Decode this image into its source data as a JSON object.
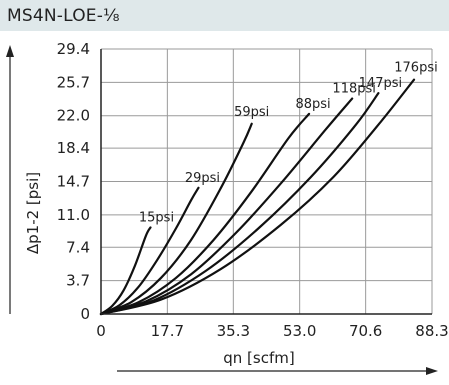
{
  "header": {
    "title": "MS4N-LOE-⅛"
  },
  "chart_data": {
    "type": "line",
    "title": "",
    "xlabel": "qn [scfm]",
    "ylabel": "Δp1-2 [psi]",
    "xlim": [
      0,
      88.3
    ],
    "ylim": [
      0,
      29.4
    ],
    "grid": true,
    "x_ticks": [
      "0",
      "17.7",
      "35.3",
      "53.0",
      "70.6",
      "88.3"
    ],
    "y_ticks": [
      "0",
      "3.7",
      "7.4",
      "11.0",
      "14.7",
      "18.4",
      "22.0",
      "25.7",
      "29.4"
    ],
    "series": [
      {
        "name": "15psi",
        "points": [
          [
            0,
            0
          ],
          [
            3,
            0.9
          ],
          [
            6,
            2.6
          ],
          [
            9,
            5.3
          ],
          [
            12,
            8.7
          ],
          [
            13.2,
            9.6
          ]
        ]
      },
      {
        "name": "29psi",
        "points": [
          [
            0,
            0
          ],
          [
            5,
            1.0
          ],
          [
            10,
            3.0
          ],
          [
            15,
            6.0
          ],
          [
            20,
            9.5
          ],
          [
            24,
            12.6
          ],
          [
            26,
            14.0
          ]
        ]
      },
      {
        "name": "59psi",
        "points": [
          [
            0,
            0
          ],
          [
            8,
            1.3
          ],
          [
            16,
            4.0
          ],
          [
            24,
            8.2
          ],
          [
            32,
            14.0
          ],
          [
            38,
            19.0
          ],
          [
            40.2,
            21.1
          ]
        ]
      },
      {
        "name": "88psi",
        "points": [
          [
            0,
            0
          ],
          [
            10,
            1.3
          ],
          [
            20,
            4.0
          ],
          [
            30,
            8.2
          ],
          [
            40,
            13.5
          ],
          [
            50,
            19.5
          ],
          [
            55.5,
            22.2
          ]
        ]
      },
      {
        "name": "118psi",
        "points": [
          [
            0,
            0
          ],
          [
            12,
            1.4
          ],
          [
            24,
            4.4
          ],
          [
            36,
            9.0
          ],
          [
            48,
            14.5
          ],
          [
            60,
            20.5
          ],
          [
            67,
            23.9
          ]
        ]
      },
      {
        "name": "147psi",
        "points": [
          [
            0,
            0
          ],
          [
            14,
            1.5
          ],
          [
            28,
            4.8
          ],
          [
            42,
            9.5
          ],
          [
            56,
            15.2
          ],
          [
            68,
            21.0
          ],
          [
            74,
            24.5
          ]
        ]
      },
      {
        "name": "176psi",
        "points": [
          [
            0,
            0
          ],
          [
            16,
            1.6
          ],
          [
            32,
            5.0
          ],
          [
            48,
            9.9
          ],
          [
            62,
            15.2
          ],
          [
            74,
            21.0
          ],
          [
            83.5,
            26.0
          ]
        ]
      }
    ],
    "annotations": [
      "15psi",
      "29psi",
      "59psi",
      "88psi",
      "118psi",
      "147psi",
      "176psi"
    ]
  }
}
